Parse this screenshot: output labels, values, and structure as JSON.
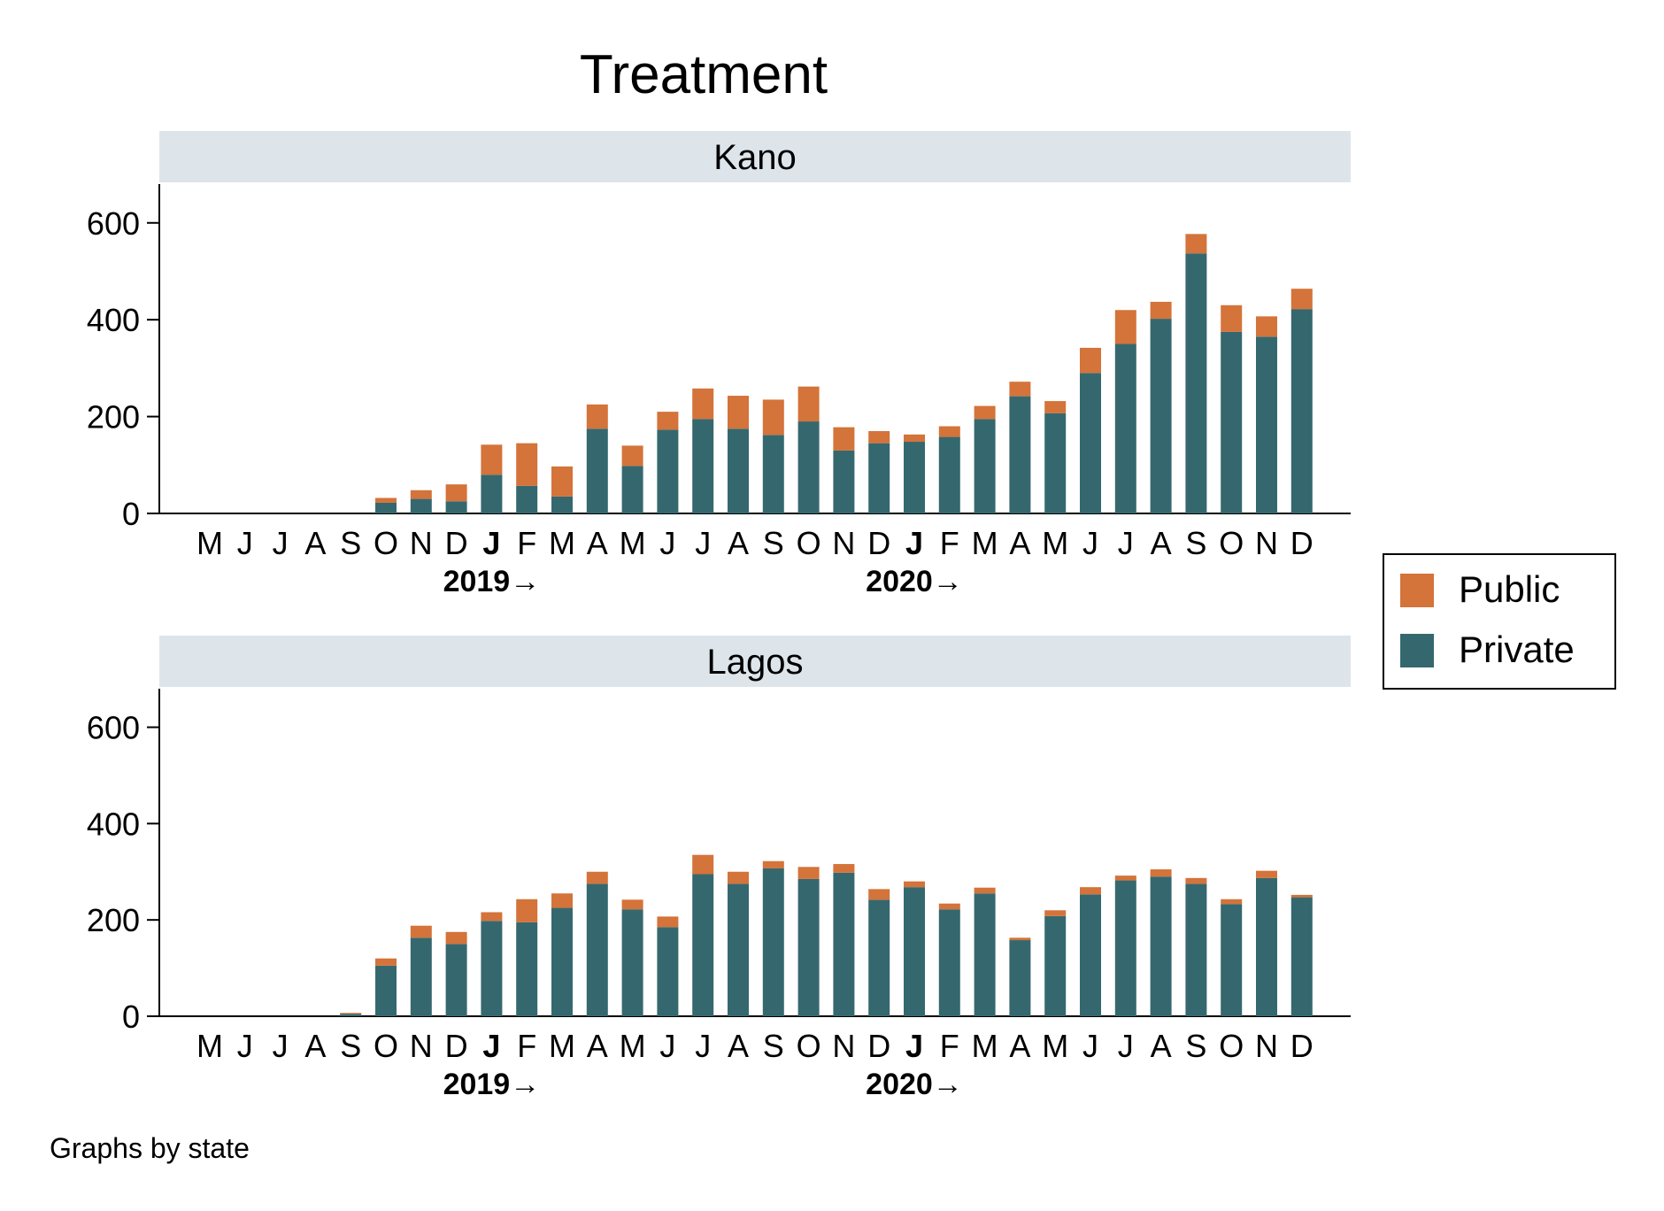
{
  "chart_data": {
    "type": "bar",
    "stacked": true,
    "title": "Treatment",
    "note": "Graphs by state",
    "legend": {
      "placement": "right",
      "entries": [
        {
          "name": "Public",
          "color": "#D4733A"
        },
        {
          "name": "Private",
          "color": "#35686E"
        }
      ]
    },
    "months": [
      "M",
      "J",
      "J",
      "A",
      "S",
      "O",
      "N",
      "D",
      "J",
      "F",
      "M",
      "A",
      "M",
      "J",
      "J",
      "A",
      "S",
      "O",
      "N",
      "D",
      "J",
      "F",
      "M",
      "A",
      "M",
      "J",
      "J",
      "A",
      "S",
      "O",
      "N",
      "D"
    ],
    "bold_month_indices": [
      8,
      20
    ],
    "year_labels": [
      {
        "text": "2019→",
        "month_index": 8
      },
      {
        "text": "2020→",
        "month_index": 20
      }
    ],
    "ylim": [
      0,
      680
    ],
    "yticks": [
      0,
      200,
      400,
      600
    ],
    "panel_header_color": "#DDE5EB",
    "panels": [
      {
        "name": "Kano",
        "series": [
          {
            "name": "Private",
            "color": "#35686E",
            "values": [
              0,
              0,
              0,
              0,
              0,
              22,
              30,
              25,
              80,
              57,
              35,
              175,
              98,
              173,
              195,
              175,
              162,
              190,
              130,
              145,
              148,
              158,
              195,
              242,
              207,
              290,
              350,
              402,
              537,
              375,
              365,
              422
            ]
          },
          {
            "name": "Public",
            "color": "#D4733A",
            "values": [
              0,
              0,
              0,
              0,
              0,
              10,
              18,
              35,
              62,
              88,
              62,
              50,
              42,
              37,
              63,
              68,
              73,
              72,
              48,
              25,
              15,
              22,
              27,
              30,
              25,
              52,
              70,
              35,
              40,
              55,
              42,
              42
            ]
          }
        ]
      },
      {
        "name": "Lagos",
        "series": [
          {
            "name": "Private",
            "color": "#35686E",
            "values": [
              0,
              0,
              0,
              0,
              5,
              105,
              163,
              150,
              198,
              195,
              225,
              275,
              222,
              185,
              295,
              275,
              307,
              285,
              298,
              242,
              268,
              222,
              255,
              158,
              208,
              253,
              282,
              290,
              275,
              233,
              287,
              247
            ]
          },
          {
            "name": "Public",
            "color": "#D4733A",
            "values": [
              0,
              0,
              0,
              0,
              2,
              15,
              25,
              25,
              18,
              48,
              30,
              25,
              20,
              22,
              40,
              25,
              15,
              25,
              18,
              22,
              12,
              12,
              12,
              5,
              12,
              15,
              10,
              15,
              12,
              10,
              15,
              5
            ]
          }
        ]
      }
    ]
  }
}
